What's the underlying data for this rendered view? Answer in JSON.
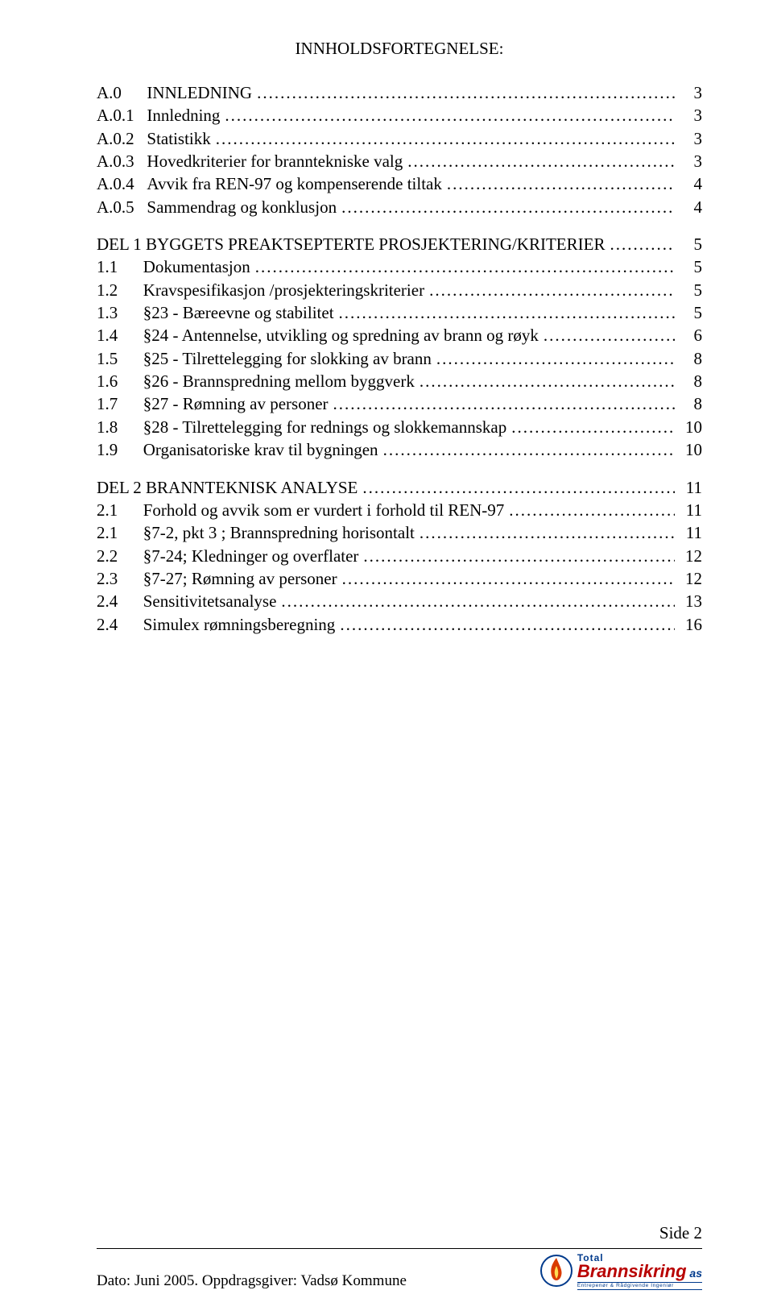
{
  "title": "INNHOLDSFORTEGNELSE:",
  "sections": [
    {
      "num": "A.0",
      "label": "INNLEDNING",
      "page": "3",
      "spacer": "      "
    },
    {
      "num": "A.0.1",
      "label": "Innledning",
      "page": "3",
      "spacer": "   "
    },
    {
      "num": "A.0.2",
      "label": "Statistikk",
      "page": "3",
      "spacer": "   "
    },
    {
      "num": "A.0.3",
      "label": "Hovedkriterier for branntekniske valg",
      "page": "3",
      "spacer": "   "
    },
    {
      "num": "A.0.4",
      "label": "Avvik fra REN-97 og kompenserende tiltak",
      "page": "4",
      "spacer": "   "
    },
    {
      "num": "A.0.5",
      "label": "Sammendrag og konklusjon",
      "page": "4",
      "spacer": "   "
    }
  ],
  "del1_heading": {
    "num": "DEL 1 BYGGETS PREAKTSEPTERTE PROSJEKTERING/KRITERIER",
    "page": "5"
  },
  "del1": [
    {
      "num": "1.1",
      "label": "Dokumentasjon",
      "page": "5"
    },
    {
      "num": "1.2",
      "label": "Kravspesifikasjon /prosjekteringskriterier",
      "page": "5"
    },
    {
      "num": "1.3",
      "label": "§23 -  Bæreevne og stabilitet",
      "page": "5"
    },
    {
      "num": "1.4",
      "label": "§24 -  Antennelse, utvikling og spredning av brann og røyk",
      "page": "6"
    },
    {
      "num": "1.5",
      "label": "§25 -  Tilrettelegging for slokking av brann",
      "page": "8"
    },
    {
      "num": "1.6",
      "label": "§26 -  Brannspredning mellom byggverk",
      "page": "8"
    },
    {
      "num": "1.7",
      "label": "§27 -  Rømning av personer",
      "page": "8"
    },
    {
      "num": "1.8",
      "label": "§28 -  Tilrettelegging for rednings og slokkemannskap",
      "page": "10"
    },
    {
      "num": "1.9",
      "label": "Organisatoriske krav til bygningen",
      "page": "10"
    }
  ],
  "del2_heading": {
    "num": "DEL 2 BRANNTEKNISK ANALYSE",
    "page": "11"
  },
  "del2": [
    {
      "num": "2.1",
      "label": "Forhold og avvik som er vurdert i forhold til REN-97",
      "page": "11"
    },
    {
      "num": "2.1",
      "label": "§7-2, pkt 3 ; Brannspredning horisontalt",
      "page": "11"
    },
    {
      "num": "2.2",
      "label": "§7-24; Kledninger og overflater",
      "page": "12"
    },
    {
      "num": "2.3",
      "label": "§7-27; Rømning av personer",
      "page": "12"
    },
    {
      "num": "2.4",
      "label": "Sensitivitetsanalyse",
      "page": "13"
    },
    {
      "num": "2.4",
      "label": "Simulex rømningsberegning",
      "page": "16"
    }
  ],
  "footer": {
    "side": "Side 2",
    "left": "Dato: Juni 2005.    Oppdragsgiver: Vadsø Kommune",
    "logo_total": "Total",
    "logo_brann": "Brannsikring",
    "logo_as": " as",
    "logo_sub": "Entrepenør & Rådgivende Ingeniør"
  }
}
